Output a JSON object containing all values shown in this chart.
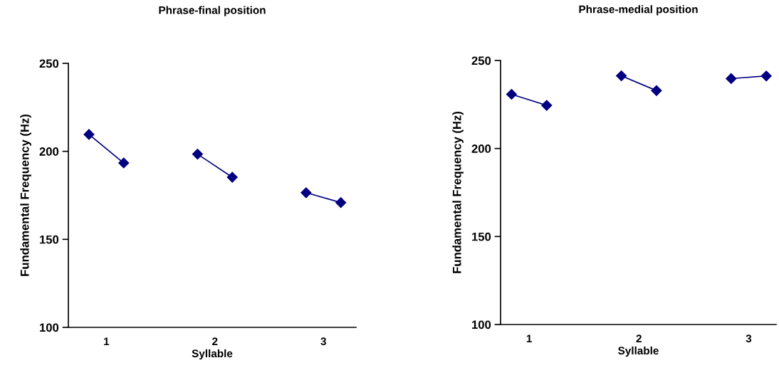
{
  "chart_data": [
    {
      "type": "line",
      "title": "Phrase-final position",
      "xlabel": "Syllable",
      "ylabel": "Fundamental Frequency (Hz)",
      "xlim": [
        0.65,
        3.3
      ],
      "xticks": [
        1,
        2,
        3
      ],
      "ylim": [
        100,
        250
      ],
      "yticks": [
        100,
        150,
        200,
        250
      ],
      "marker": "diamond",
      "line_style": "solid",
      "grid": false,
      "legend": false,
      "series": [
        {
          "color": "#000080",
          "x": [
            0.84,
            1.16
          ],
          "values": [
            209.6,
            193.4
          ]
        },
        {
          "color": "#000080",
          "x": [
            1.84,
            2.16
          ],
          "values": [
            198.4,
            185.3
          ]
        },
        {
          "color": "#000080",
          "x": [
            2.84,
            3.16
          ],
          "values": [
            176.5,
            170.9
          ]
        }
      ]
    },
    {
      "type": "line",
      "title": "Phrase-medial position",
      "xlabel": "Syllable",
      "ylabel": "Fundamental Frequency (Hz)",
      "xlim": [
        0.74,
        3.25
      ],
      "xticks": [
        1,
        2,
        3
      ],
      "ylim": [
        100,
        250
      ],
      "yticks": [
        100,
        150,
        200,
        250
      ],
      "marker": "diamond",
      "line_style": "solid",
      "grid": false,
      "legend": false,
      "series": [
        {
          "color": "#000080",
          "x": [
            0.84,
            1.16
          ],
          "values": [
            230.8,
            224.5
          ]
        },
        {
          "color": "#000080",
          "x": [
            1.84,
            2.16
          ],
          "values": [
            241.3,
            232.9
          ]
        },
        {
          "color": "#000080",
          "x": [
            2.84,
            3.16
          ],
          "values": [
            239.7,
            241.2
          ]
        }
      ]
    }
  ]
}
